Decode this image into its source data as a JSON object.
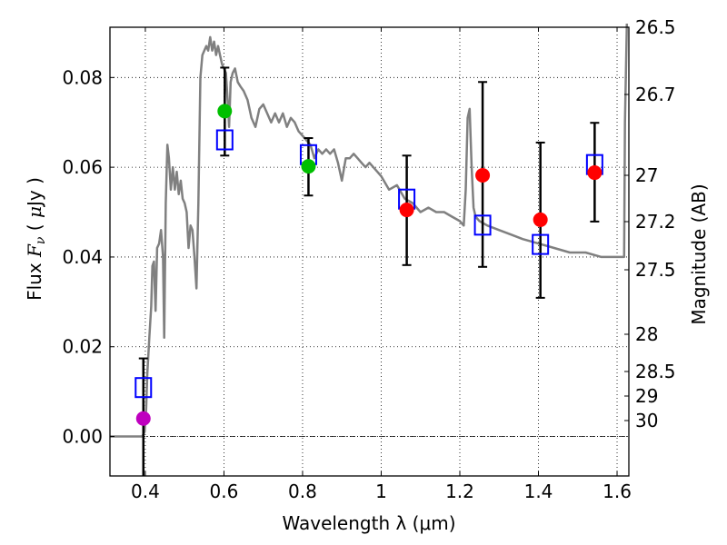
{
  "chart_data": {
    "type": "scatter",
    "title": "",
    "xlabel": "Wavelength  λ (μm)",
    "ylabel": "Flux  Fν  ( μJy )",
    "ylabel_right": "Magnitude (AB)",
    "xlim": [
      0.31,
      1.63
    ],
    "ylim": [
      -0.0088,
      0.0912
    ],
    "grid": true,
    "legend": "none",
    "x_ticks": [
      0.4,
      0.6,
      0.8,
      1.0,
      1.2,
      1.4,
      1.6
    ],
    "x_tick_labels": [
      "0.4",
      "0.6",
      "0.8",
      "1",
      "1.2",
      "1.4",
      "1.6"
    ],
    "y_ticks": [
      0.0,
      0.02,
      0.04,
      0.06,
      0.08
    ],
    "y_tick_labels": [
      "0.00",
      "0.02",
      "0.04",
      "0.06",
      "0.08"
    ],
    "right_axis_ticks": [
      {
        "label": "26.5",
        "flux": 0.0912
      },
      {
        "label": "26.7",
        "flux": 0.0758
      },
      {
        "label": "27",
        "flux": 0.0575
      },
      {
        "label": "27.2",
        "flux": 0.0478
      },
      {
        "label": "27.5",
        "flux": 0.0363
      },
      {
        "label": "28",
        "flux": 0.0229
      },
      {
        "label": "28.5",
        "flux": 0.0144
      },
      {
        "label": "29",
        "flux": 0.0091
      },
      {
        "label": "30",
        "flux": 0.0036
      }
    ],
    "series": [
      {
        "name": "model-spectrum",
        "kind": "line",
        "color": "#808080",
        "x": [
          0.31,
          0.385,
          0.392,
          0.398,
          0.402,
          0.405,
          0.41,
          0.415,
          0.418,
          0.422,
          0.426,
          0.43,
          0.435,
          0.44,
          0.445,
          0.448,
          0.452,
          0.456,
          0.46,
          0.465,
          0.47,
          0.475,
          0.48,
          0.485,
          0.49,
          0.495,
          0.5,
          0.505,
          0.51,
          0.515,
          0.52,
          0.525,
          0.53,
          0.535,
          0.54,
          0.545,
          0.55,
          0.555,
          0.56,
          0.565,
          0.57,
          0.575,
          0.58,
          0.585,
          0.59,
          0.595,
          0.6,
          0.605,
          0.61,
          0.613,
          0.617,
          0.622,
          0.628,
          0.635,
          0.642,
          0.65,
          0.66,
          0.67,
          0.68,
          0.69,
          0.7,
          0.71,
          0.72,
          0.73,
          0.74,
          0.75,
          0.76,
          0.77,
          0.78,
          0.79,
          0.8,
          0.81,
          0.82,
          0.83,
          0.84,
          0.85,
          0.86,
          0.87,
          0.88,
          0.89,
          0.9,
          0.91,
          0.92,
          0.93,
          0.94,
          0.95,
          0.96,
          0.97,
          0.98,
          0.99,
          1.0,
          1.02,
          1.04,
          1.06,
          1.08,
          1.1,
          1.12,
          1.14,
          1.16,
          1.18,
          1.2,
          1.21,
          1.215,
          1.22,
          1.225,
          1.23,
          1.235,
          1.24,
          1.25,
          1.27,
          1.3,
          1.33,
          1.36,
          1.4,
          1.44,
          1.48,
          1.52,
          1.56,
          1.6,
          1.615,
          1.618,
          1.62,
          1.625
        ],
        "y": [
          0.0,
          0.0,
          0.0,
          0.001,
          0.006,
          0.014,
          0.022,
          0.029,
          0.038,
          0.039,
          0.028,
          0.042,
          0.043,
          0.046,
          0.04,
          0.022,
          0.052,
          0.065,
          0.062,
          0.055,
          0.06,
          0.055,
          0.059,
          0.054,
          0.057,
          0.053,
          0.052,
          0.05,
          0.042,
          0.047,
          0.046,
          0.04,
          0.033,
          0.052,
          0.08,
          0.085,
          0.086,
          0.087,
          0.086,
          0.089,
          0.086,
          0.088,
          0.085,
          0.087,
          0.085,
          0.083,
          0.082,
          0.081,
          0.074,
          0.069,
          0.079,
          0.081,
          0.082,
          0.079,
          0.078,
          0.077,
          0.075,
          0.071,
          0.069,
          0.073,
          0.074,
          0.072,
          0.07,
          0.072,
          0.07,
          0.072,
          0.069,
          0.071,
          0.07,
          0.068,
          0.067,
          0.066,
          0.065,
          0.062,
          0.064,
          0.063,
          0.064,
          0.063,
          0.064,
          0.061,
          0.057,
          0.062,
          0.062,
          0.063,
          0.062,
          0.061,
          0.06,
          0.061,
          0.06,
          0.059,
          0.058,
          0.055,
          0.056,
          0.053,
          0.052,
          0.05,
          0.051,
          0.05,
          0.05,
          0.049,
          0.048,
          0.047,
          0.055,
          0.071,
          0.073,
          0.06,
          0.051,
          0.049,
          0.048,
          0.047,
          0.046,
          0.045,
          0.044,
          0.043,
          0.042,
          0.041,
          0.041,
          0.04,
          0.04,
          0.04,
          0.04,
          0.07,
          0.092
        ]
      },
      {
        "name": "model-photometry",
        "kind": "open-square",
        "color": "#0000ff",
        "x": [
          0.395,
          0.602,
          0.815,
          1.065,
          1.258,
          1.405,
          1.543
        ],
        "y": [
          0.0109,
          0.0661,
          0.0628,
          0.0529,
          0.0471,
          0.0428,
          0.0606
        ]
      },
      {
        "name": "observed-photometry",
        "kind": "circle-with-errorbar",
        "x": [
          0.395,
          0.602,
          0.815,
          1.065,
          1.258,
          1.405,
          1.543
        ],
        "y": [
          0.004,
          0.0725,
          0.0602,
          0.0505,
          0.0582,
          0.0483,
          0.0588
        ],
        "err_low": [
          -0.011,
          0.0626,
          0.0537,
          0.0382,
          0.0378,
          0.0309,
          0.0479
        ],
        "err_high": [
          0.0174,
          0.0822,
          0.0665,
          0.0626,
          0.079,
          0.0655,
          0.0699
        ],
        "colors": [
          "#bf00bf",
          "#00bf00",
          "#00bf00",
          "#ff0000",
          "#ff0000",
          "#ff0000",
          "#ff0000"
        ]
      }
    ],
    "reference_lines": [
      {
        "name": "zero-flux-line",
        "y": 0.0,
        "style": "dash-dot"
      }
    ]
  }
}
